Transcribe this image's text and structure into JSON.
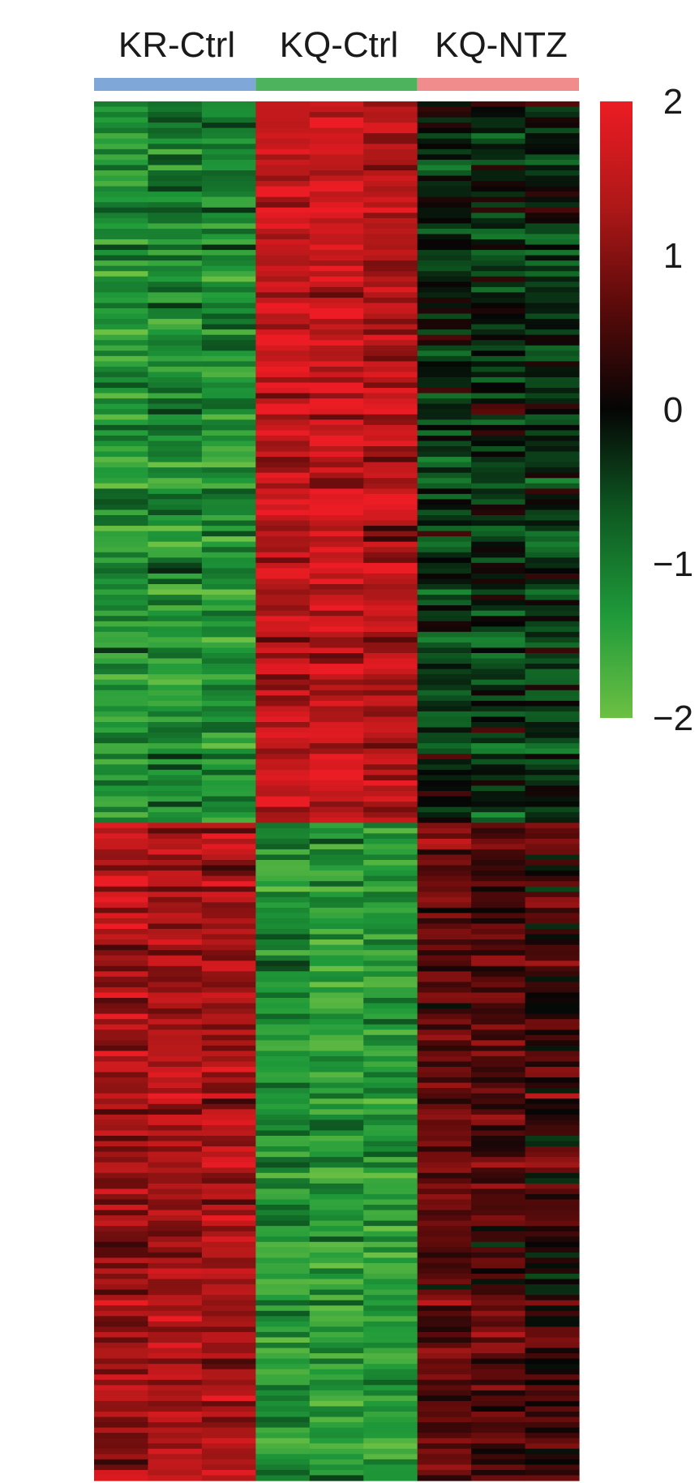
{
  "chart_data": {
    "type": "heatmap",
    "title": "",
    "groups": [
      {
        "name": "KR-Ctrl",
        "color": "#7fa8d8",
        "n_samples": 3
      },
      {
        "name": "KQ-Ctrl",
        "color": "#4db35c",
        "n_samples": 3
      },
      {
        "name": "KQ-NTZ",
        "color": "#f08c8c",
        "n_samples": 3
      }
    ],
    "colorbar": {
      "min": -2,
      "max": 2,
      "ticks": [
        "2",
        "1",
        "0",
        "−1",
        "−2"
      ],
      "tick_values": [
        2,
        1,
        0,
        -1,
        -2
      ],
      "colors": [
        "#6cc043",
        "#1f9a3a",
        "#0e5a22",
        "#050505",
        "#5a0a0a",
        "#b01818",
        "#ec1c24"
      ]
    },
    "clusters": [
      {
        "label": "",
        "rows": 136,
        "sample_means": [
          -1.3,
          -1.2,
          -1.2,
          1.5,
          1.6,
          1.4,
          -0.3,
          -0.3,
          -0.3
        ]
      },
      {
        "label": "",
        "rows": 124,
        "sample_means": [
          1.2,
          1.3,
          1.3,
          -1.3,
          -1.4,
          -1.4,
          0.7,
          0.6,
          0.4
        ]
      }
    ],
    "row_noise": 0.55
  }
}
